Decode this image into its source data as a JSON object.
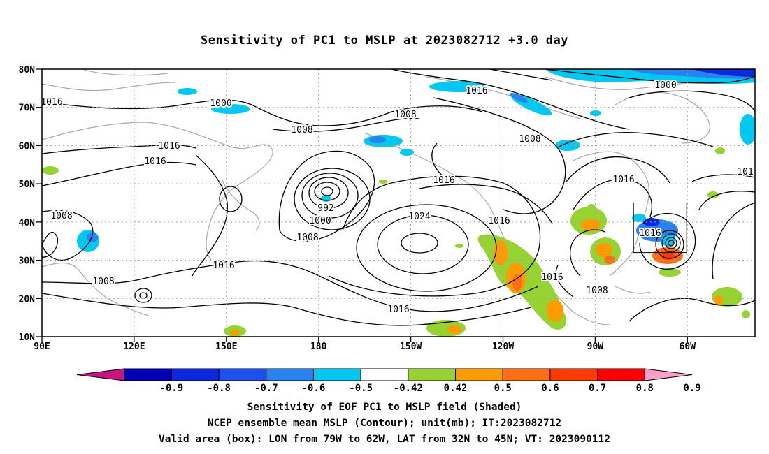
{
  "title": "Sensitivity of PC1 to MSLP at 2023082712 +3.0 day",
  "map": {
    "lat_ticks": [
      "80N",
      "70N",
      "60N",
      "50N",
      "40N",
      "30N",
      "20N",
      "10N"
    ],
    "lon_ticks": [
      "90E",
      "120E",
      "150E",
      "180",
      "150W",
      "120W",
      "90W",
      "60W"
    ],
    "lon_range": [
      90,
      322
    ],
    "lat_range": [
      10,
      80
    ],
    "valid_box": {
      "lon": [
        281,
        298
      ],
      "lat": [
        32,
        45
      ]
    },
    "contour_labels": [
      "1016",
      "1000",
      "1008",
      "1016",
      "1016",
      "1008",
      "1016",
      "1008",
      "1016",
      "1000",
      "1008",
      "1016",
      "1016",
      "1008",
      "992",
      "1000",
      "1008",
      "1016",
      "1024",
      "1016",
      "1016",
      "1016",
      "1008",
      "1008",
      "1016",
      "101"
    ]
  },
  "colorbar": {
    "labels": [
      "-0.9",
      "-0.8",
      "-0.7",
      "-0.6",
      "-0.5",
      "-0.42",
      "0.42",
      "0.5",
      "0.6",
      "0.7",
      "0.8",
      "0.9"
    ],
    "colors": [
      "#c71585",
      "#0000b4",
      "#0a28dc",
      "#1e50f0",
      "#2882f0",
      "#00c8f0",
      "#ffffff",
      "#96d232",
      "#ff9a00",
      "#ff6e14",
      "#ff3a00",
      "#ff0000",
      "#f8a0c8"
    ]
  },
  "captions": [
    "Sensitivity of EOF PC1 to MSLP field (Shaded)",
    "NCEP ensemble mean MSLP (Contour); unit(mb); IT:2023082712",
    "Valid area (box): LON from 79W to 62W, LAT from 32N to 45N; VT: 2023090112"
  ]
}
